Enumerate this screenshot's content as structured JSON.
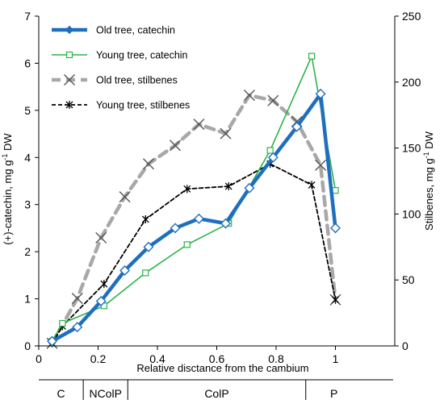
{
  "chart_data": {
    "type": "line",
    "xlabel": "Relative disctance from the cambium",
    "ylabel_left_main": "(+)-catechin, mg g",
    "ylabel_left_sup": "-1",
    "ylabel_left_end": " DW",
    "ylabel_right_main": "Stilbenes, mg g",
    "ylabel_right_sup": "-1",
    "ylabel_right_end": " DW",
    "xlim": [
      0,
      1.2
    ],
    "ylim_left": [
      0,
      7
    ],
    "ylim_right": [
      0,
      250
    ],
    "x_ticks": [
      {
        "value": 0,
        "label": "0"
      },
      {
        "value": 0.2,
        "label": "0.2"
      },
      {
        "value": 0.4,
        "label": "0.4"
      },
      {
        "value": 0.6,
        "label": "0.6"
      },
      {
        "value": 0.8,
        "label": "0.8"
      },
      {
        "value": 1.0,
        "label": "1"
      }
    ],
    "y_left_ticks": [
      {
        "value": 0,
        "label": "0"
      },
      {
        "value": 1,
        "label": "1"
      },
      {
        "value": 2,
        "label": "2"
      },
      {
        "value": 3,
        "label": "3"
      },
      {
        "value": 4,
        "label": "4"
      },
      {
        "value": 5,
        "label": "5"
      },
      {
        "value": 6,
        "label": "6"
      },
      {
        "value": 7,
        "label": "7"
      }
    ],
    "y_right_ticks": [
      {
        "value": 0,
        "label": "0"
      },
      {
        "value": 50,
        "label": "50"
      },
      {
        "value": 100,
        "label": "100"
      },
      {
        "value": 150,
        "label": "150"
      },
      {
        "value": 200,
        "label": "200"
      },
      {
        "value": 250,
        "label": "250"
      }
    ],
    "legend_position": "top-left",
    "grid": false,
    "series": [
      {
        "name": "Old tree, catechin",
        "axis": "left",
        "color": "#1f6fbf",
        "style": "solid-thick",
        "marker": "diamond-open",
        "x": [
          0.045,
          0.13,
          0.21,
          0.29,
          0.37,
          0.46,
          0.54,
          0.63,
          0.71,
          0.79,
          0.87,
          0.95,
          1.0
        ],
        "y": [
          0.1,
          0.4,
          0.95,
          1.6,
          2.1,
          2.5,
          2.7,
          2.6,
          3.35,
          4.0,
          4.65,
          5.35,
          2.5
        ]
      },
      {
        "name": "Young tree, catechin",
        "axis": "left",
        "color": "#2db34a",
        "style": "solid-thin",
        "marker": "square-open",
        "x": [
          0.045,
          0.08,
          0.22,
          0.36,
          0.5,
          0.64,
          0.78,
          0.92,
          1.0
        ],
        "y": [
          0.1,
          0.48,
          0.85,
          1.55,
          2.15,
          2.6,
          4.15,
          6.15,
          3.3
        ]
      },
      {
        "name": "Old tree, stilbenes",
        "axis": "right",
        "color": "#a8a8a8",
        "style": "dashed-thick",
        "marker": "x",
        "x": [
          0.045,
          0.13,
          0.21,
          0.29,
          0.37,
          0.46,
          0.54,
          0.63,
          0.71,
          0.79,
          0.87,
          0.95,
          1.0
        ],
        "y": [
          2,
          36,
          82,
          113,
          138,
          152,
          168,
          161,
          190,
          186,
          170,
          137,
          35
        ]
      },
      {
        "name": "Young tree, stilbenes",
        "axis": "right",
        "color": "#000000",
        "style": "dashed-thin",
        "marker": "asterisk",
        "x": [
          0.045,
          0.08,
          0.22,
          0.36,
          0.5,
          0.64,
          0.78,
          0.92,
          1.0
        ],
        "y": [
          2,
          15,
          47,
          96,
          119,
          121,
          138,
          122,
          35
        ]
      }
    ],
    "zones": [
      {
        "label": "C",
        "x_start": 0.0,
        "x_end": 0.15
      },
      {
        "label": "NColP",
        "x_start": 0.15,
        "x_end": 0.3
      },
      {
        "label": "ColP",
        "x_start": 0.3,
        "x_end": 0.9
      },
      {
        "label": "P",
        "x_start": 0.9,
        "x_end": 1.09
      }
    ]
  }
}
